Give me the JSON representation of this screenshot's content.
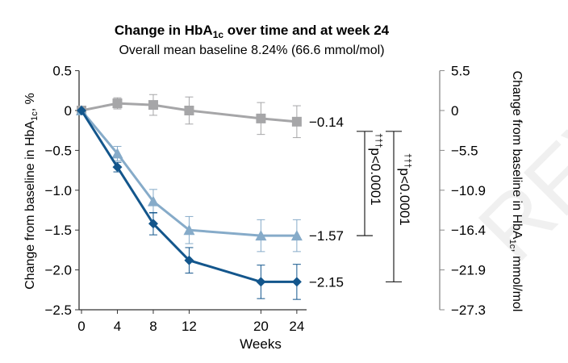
{
  "chart_data": {
    "type": "line",
    "title_main": "Change in HbA",
    "title_sub": "1c",
    "title_rest": " over time and at week 24",
    "subtitle": "Overall mean baseline 8.24% (66.6 mmol/mol)",
    "xlabel": "Weeks",
    "ylabel_left": "Change from baseline in HbA",
    "ylabel_left_sub": "1c",
    "ylabel_left_unit": ", %",
    "ylabel_right": "Change from baseline in HbA",
    "ylabel_right_sub": "1c",
    "ylabel_right_unit": ", mmol/mol",
    "x": [
      0,
      4,
      8,
      12,
      20,
      24
    ],
    "x_ticks": [
      "0",
      "4",
      "8",
      "12",
      "20",
      "24"
    ],
    "ylim": [
      -2.5,
      0.5
    ],
    "y_ticks": [
      0.5,
      0,
      -0.5,
      -1.0,
      -1.5,
      -2.0,
      -2.5
    ],
    "y_tick_labels": [
      "0.5",
      "0",
      "-0.5",
      "-1.0",
      "-1.5",
      "-2.0",
      "-2.5"
    ],
    "y_right_tick_labels": [
      "5.5",
      "0",
      "-5.5",
      "-10.9",
      "-16.4",
      "-21.9",
      "-27.3"
    ],
    "series": [
      {
        "marker": "square",
        "color": "#a6a6a8",
        "values": [
          0,
          0.09,
          0.07,
          0,
          -0.1,
          -0.14
        ],
        "err": [
          0,
          0.07,
          0.13,
          0.17,
          0.2,
          0.2
        ],
        "end_label": "−0.14"
      },
      {
        "marker": "triangle",
        "color": "#86abc9",
        "values": [
          0,
          -0.54,
          -1.14,
          -1.5,
          -1.57,
          -1.57
        ],
        "err": [
          0,
          0.09,
          0.15,
          0.17,
          0.2,
          0.2
        ],
        "end_label": "−1.57"
      },
      {
        "marker": "diamond",
        "color": "#13568c",
        "values": [
          0,
          -0.71,
          -1.42,
          -1.88,
          -2.15,
          -2.15
        ],
        "err": [
          0,
          0.06,
          0.14,
          0.16,
          0.21,
          0.22
        ],
        "end_label": "−2.15"
      }
    ],
    "annotations": [
      {
        "dagger": "†††",
        "text": "p<0.0001",
        "from": -0.14,
        "to": -1.57
      },
      {
        "dagger": "†††",
        "text": "p<0.0001",
        "from": -0.14,
        "to": -2.15
      }
    ],
    "grid": false,
    "legend": "none"
  }
}
